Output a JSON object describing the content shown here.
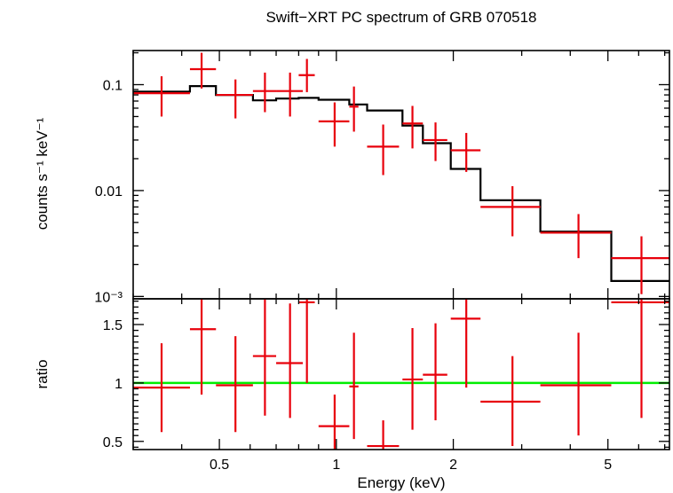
{
  "chart_data": {
    "type": "step",
    "title": "Swift−XRT PC spectrum of GRB 070518",
    "xlabel": "Energy (keV)",
    "x_scale": "log",
    "xlim": [
      0.3,
      7.2
    ],
    "x_ticks": [
      {
        "value": 0.5,
        "label": "0.5"
      },
      {
        "value": 1,
        "label": "1"
      },
      {
        "value": 2,
        "label": "2"
      },
      {
        "value": 5,
        "label": "5"
      }
    ],
    "panels": [
      {
        "name": "spectrum",
        "ylabel": "counts s⁻¹ keV⁻¹",
        "y_scale": "log",
        "ylim": [
          0.00095,
          0.21
        ],
        "y_ticks": [
          {
            "value": 0.1,
            "label": "0.1"
          },
          {
            "value": 0.01,
            "label": "0.01"
          },
          {
            "value": 0.001,
            "label": "10⁻³"
          }
        ],
        "data_color": "#e8000b",
        "model_color": "#000000",
        "data": [
          {
            "x": 0.355,
            "xlo": 0.3,
            "xhi": 0.42,
            "y": 0.083,
            "ylo": 0.05,
            "yhi": 0.12
          },
          {
            "x": 0.45,
            "xlo": 0.42,
            "xhi": 0.49,
            "y": 0.14,
            "ylo": 0.092,
            "yhi": 0.2
          },
          {
            "x": 0.55,
            "xlo": 0.49,
            "xhi": 0.61,
            "y": 0.08,
            "ylo": 0.048,
            "yhi": 0.112
          },
          {
            "x": 0.655,
            "xlo": 0.61,
            "xhi": 0.7,
            "y": 0.087,
            "ylo": 0.055,
            "yhi": 0.13
          },
          {
            "x": 0.76,
            "xlo": 0.7,
            "xhi": 0.82,
            "y": 0.087,
            "ylo": 0.05,
            "yhi": 0.13
          },
          {
            "x": 0.84,
            "xlo": 0.8,
            "xhi": 0.88,
            "y": 0.123,
            "ylo": 0.085,
            "yhi": 0.175
          },
          {
            "x": 0.99,
            "xlo": 0.9,
            "xhi": 1.08,
            "y": 0.045,
            "ylo": 0.026,
            "yhi": 0.068
          },
          {
            "x": 1.11,
            "xlo": 1.08,
            "xhi": 1.14,
            "y": 0.062,
            "ylo": 0.036,
            "yhi": 0.096
          },
          {
            "x": 1.32,
            "xlo": 1.2,
            "xhi": 1.45,
            "y": 0.026,
            "ylo": 0.014,
            "yhi": 0.042
          },
          {
            "x": 1.57,
            "xlo": 1.48,
            "xhi": 1.67,
            "y": 0.043,
            "ylo": 0.025,
            "yhi": 0.063
          },
          {
            "x": 1.8,
            "xlo": 1.67,
            "xhi": 1.93,
            "y": 0.03,
            "ylo": 0.019,
            "yhi": 0.044
          },
          {
            "x": 2.16,
            "xlo": 1.97,
            "xhi": 2.35,
            "y": 0.024,
            "ylo": 0.015,
            "yhi": 0.035
          },
          {
            "x": 2.84,
            "xlo": 2.35,
            "xhi": 3.35,
            "y": 0.007,
            "ylo": 0.0037,
            "yhi": 0.011
          },
          {
            "x": 4.2,
            "xlo": 3.35,
            "xhi": 5.1,
            "y": 0.004,
            "ylo": 0.0023,
            "yhi": 0.006
          },
          {
            "x": 6.1,
            "xlo": 5.1,
            "xhi": 7.2,
            "y": 0.0023,
            "ylo": 0.00105,
            "yhi": 0.0037
          }
        ],
        "model": [
          {
            "xlo": 0.3,
            "xhi": 0.42,
            "y": 0.086
          },
          {
            "xlo": 0.42,
            "xhi": 0.49,
            "y": 0.097
          },
          {
            "xlo": 0.49,
            "xhi": 0.61,
            "y": 0.08
          },
          {
            "xlo": 0.61,
            "xhi": 0.7,
            "y": 0.071
          },
          {
            "xlo": 0.7,
            "xhi": 0.8,
            "y": 0.074
          },
          {
            "xlo": 0.8,
            "xhi": 0.9,
            "y": 0.075
          },
          {
            "xlo": 0.9,
            "xhi": 1.08,
            "y": 0.072
          },
          {
            "xlo": 1.08,
            "xhi": 1.2,
            "y": 0.065
          },
          {
            "xlo": 1.2,
            "xhi": 1.48,
            "y": 0.057
          },
          {
            "xlo": 1.48,
            "xhi": 1.67,
            "y": 0.041
          },
          {
            "xlo": 1.67,
            "xhi": 1.97,
            "y": 0.028
          },
          {
            "xlo": 1.97,
            "xhi": 2.35,
            "y": 0.016
          },
          {
            "xlo": 2.35,
            "xhi": 3.35,
            "y": 0.0081
          },
          {
            "xlo": 3.35,
            "xhi": 5.1,
            "y": 0.0041
          },
          {
            "xlo": 5.1,
            "xhi": 7.2,
            "y": 0.0014
          }
        ]
      },
      {
        "name": "ratio",
        "ylabel": "ratio",
        "y_scale": "linear",
        "ylim": [
          0.43,
          1.72
        ],
        "y_ticks": [
          {
            "value": 0.5,
            "label": "0.5"
          },
          {
            "value": 1,
            "label": "1"
          },
          {
            "value": 1.5,
            "label": "1.5"
          }
        ],
        "reference_line": {
          "y": 1,
          "color": "#00ee00"
        },
        "data_color": "#e8000b",
        "data": [
          {
            "x": 0.355,
            "xlo": 0.3,
            "xhi": 0.42,
            "y": 0.96,
            "ylo": 0.58,
            "yhi": 1.34
          },
          {
            "x": 0.45,
            "xlo": 0.42,
            "xhi": 0.49,
            "y": 1.46,
            "ylo": 0.9,
            "yhi": 2.0
          },
          {
            "x": 0.55,
            "xlo": 0.49,
            "xhi": 0.61,
            "y": 0.98,
            "ylo": 0.58,
            "yhi": 1.4
          },
          {
            "x": 0.655,
            "xlo": 0.61,
            "xhi": 0.7,
            "y": 1.23,
            "ylo": 0.72,
            "yhi": 1.76
          },
          {
            "x": 0.76,
            "xlo": 0.7,
            "xhi": 0.82,
            "y": 1.17,
            "ylo": 0.7,
            "yhi": 1.68
          },
          {
            "x": 0.84,
            "xlo": 0.8,
            "xhi": 0.88,
            "y": 1.69,
            "ylo": 1.0,
            "yhi": 2.4
          },
          {
            "x": 0.99,
            "xlo": 0.9,
            "xhi": 1.08,
            "y": 0.63,
            "ylo": 0.36,
            "yhi": 0.9
          },
          {
            "x": 1.11,
            "xlo": 1.08,
            "xhi": 1.14,
            "y": 0.97,
            "ylo": 0.52,
            "yhi": 1.43
          },
          {
            "x": 1.32,
            "xlo": 1.2,
            "xhi": 1.45,
            "y": 0.46,
            "ylo": 0.25,
            "yhi": 0.68
          },
          {
            "x": 1.57,
            "xlo": 1.48,
            "xhi": 1.67,
            "y": 1.03,
            "ylo": 0.6,
            "yhi": 1.47
          },
          {
            "x": 1.8,
            "xlo": 1.67,
            "xhi": 1.93,
            "y": 1.07,
            "ylo": 0.68,
            "yhi": 1.51
          },
          {
            "x": 2.16,
            "xlo": 1.97,
            "xhi": 2.35,
            "y": 1.55,
            "ylo": 0.96,
            "yhi": 2.15
          },
          {
            "x": 2.84,
            "xlo": 2.35,
            "xhi": 3.35,
            "y": 0.84,
            "ylo": 0.46,
            "yhi": 1.23
          },
          {
            "x": 4.2,
            "xlo": 3.35,
            "xhi": 5.1,
            "y": 0.98,
            "ylo": 0.55,
            "yhi": 1.43
          },
          {
            "x": 6.1,
            "xlo": 5.1,
            "xhi": 7.2,
            "y": 1.69,
            "ylo": 0.7,
            "yhi": 2.7
          }
        ]
      }
    ]
  }
}
